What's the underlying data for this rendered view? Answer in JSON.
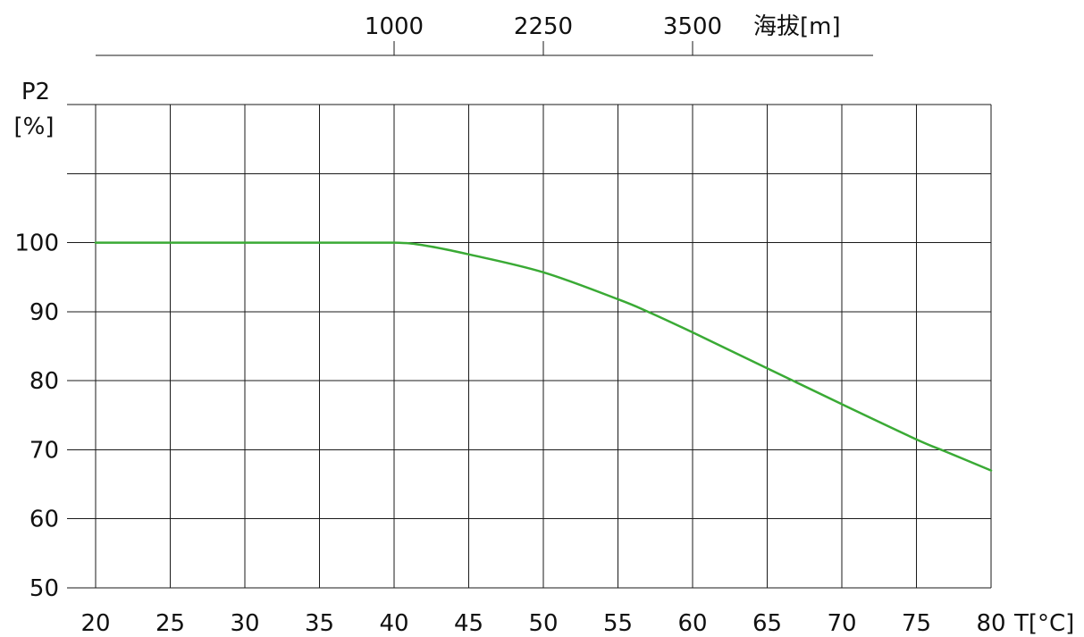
{
  "chart_data": {
    "type": "line",
    "title": "",
    "xlabel": "T[°C]",
    "ylabel_line1": "P2",
    "ylabel_line2": "[%]",
    "x_ticks": [
      20,
      25,
      30,
      35,
      40,
      45,
      50,
      55,
      60,
      65,
      70,
      75,
      80
    ],
    "y_ticks": [
      50,
      60,
      70,
      80,
      90,
      100
    ],
    "xlim": [
      20,
      80
    ],
    "ylim": [
      50,
      120
    ],
    "grid": true,
    "top_axis": {
      "label": "海拔[m]",
      "ticks": [
        {
          "label": "1000",
          "at_x": 40
        },
        {
          "label": "2250",
          "at_x": 50
        },
        {
          "label": "3500",
          "at_x": 60
        }
      ]
    },
    "series": [
      {
        "color": "#3aaa35",
        "x": [
          20,
          25,
          30,
          35,
          40,
          42,
          45,
          50,
          55,
          57,
          60,
          65,
          70,
          75,
          77,
          80
        ],
        "y": [
          100,
          100,
          100,
          100,
          100,
          99.6,
          98.3,
          95.7,
          91.8,
          90,
          87,
          81.8,
          76.6,
          71.5,
          69.7,
          67
        ]
      }
    ]
  }
}
